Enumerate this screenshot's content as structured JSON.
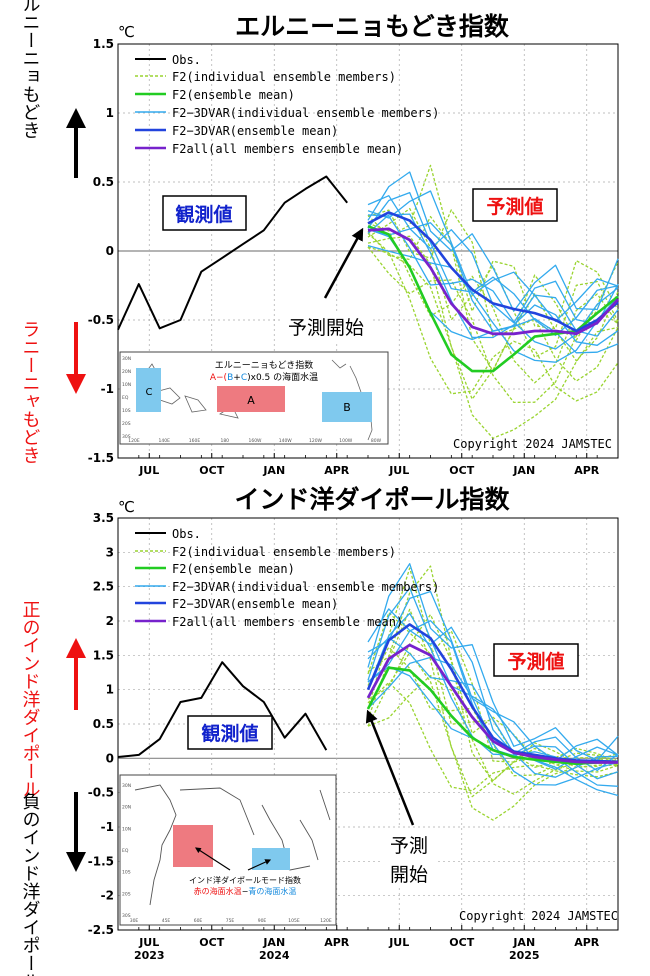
{
  "legend_labels": [
    "Obs.",
    "F2(individual ensemble members)",
    "F2(ensemble mean)",
    "F2−3DVAR(individual ensemble members)",
    "F2−3DVAR(ensemble mean)",
    "F2all(all members ensemble mean)"
  ],
  "colors": {
    "obs": "#000000",
    "f2_member": "#9ad430",
    "f2_mean": "#22cc22",
    "dvar_member": "#33aaee",
    "dvar_mean": "#2244dd",
    "all_mean": "#7722cc",
    "red_label": "#ee1111",
    "blue_label": "#1122cc"
  },
  "x_ticks": [
    "JUL",
    "OCT",
    "JAN",
    "APR",
    "JUL",
    "OCT",
    "JAN",
    "APR"
  ],
  "year_labels": [
    "2023",
    "2024",
    "2025"
  ],
  "panel1": {
    "title": "エルニーニョもどき指数",
    "unit": "℃",
    "obs_box": "観測値",
    "fcst_box": "予測値",
    "start_label": "予測開始",
    "copyright": "Copyright 2024 JAMSTEC",
    "side_pos": "エルニーニョもどき",
    "side_neg": "ラニーニャもどき",
    "inset_title": "エルニーニョもどき指数",
    "inset_formula": {
      "a": "A−(",
      "b": "B",
      "plus": "+",
      "c": "C",
      "rest": ")x0.5 の海面水温"
    },
    "inset_boxes": {
      "a": "A",
      "b": "B",
      "c": "C"
    },
    "inset_lat_labels": [
      "30N",
      "20N",
      "10N",
      "EQ",
      "10S",
      "20S",
      "30S"
    ],
    "inset_lon_labels": [
      "120E",
      "140E",
      "160E",
      "180",
      "160W",
      "140W",
      "120W",
      "100W",
      "80W"
    ]
  },
  "panel2": {
    "title": "インド洋ダイポール指数",
    "unit": "℃",
    "obs_box": "観測値",
    "fcst_box": "予測値",
    "start_label_1": "予測",
    "start_label_2": "開始",
    "copyright": "Copyright 2024 JAMSTEC",
    "side_pos": "正のインド洋ダイポール",
    "side_neg": "負のインド洋ダイポール",
    "inset_title": "インド洋ダイポールモード指数",
    "inset_sub_red": "赤の海面水温",
    "inset_sub_dash": "−",
    "inset_sub_blue": "青の海面水温",
    "inset_lat_labels": [
      "30N",
      "20N",
      "10N",
      "EQ",
      "10S",
      "20S",
      "30S"
    ],
    "inset_lon_labels": [
      "30E",
      "45E",
      "60E",
      "75E",
      "90E",
      "105E",
      "120E"
    ]
  },
  "chart_data": [
    {
      "type": "line",
      "title": "エルニーニョもどき指数",
      "ylabel": "℃",
      "ylim": [
        -1.5,
        1.5
      ],
      "yticks": [
        -1.5,
        -1,
        -0.5,
        0,
        0.5,
        1,
        1.5
      ],
      "xlim": [
        0,
        24
      ],
      "grid": true,
      "legend_position": "top-left",
      "forecast_start_x": 12,
      "series": [
        {
          "name": "Obs.",
          "x": [
            0,
            1,
            2,
            3,
            4,
            5,
            6,
            7,
            8,
            9,
            10,
            11
          ],
          "y": [
            -0.57,
            -0.24,
            -0.56,
            -0.5,
            -0.15,
            -0.05,
            0.05,
            0.15,
            0.35,
            0.45,
            0.54,
            0.35
          ]
        },
        {
          "name": "F2(ensemble mean)",
          "x": [
            12,
            13,
            14,
            15,
            16,
            17,
            18,
            19,
            20,
            21,
            22,
            23,
            24
          ],
          "y": [
            0.18,
            0.12,
            -0.12,
            -0.45,
            -0.75,
            -0.87,
            -0.87,
            -0.75,
            -0.62,
            -0.6,
            -0.58,
            -0.45,
            -0.33
          ]
        },
        {
          "name": "F2−3DVAR(ensemble mean)",
          "x": [
            12,
            13,
            14,
            15,
            16,
            17,
            18,
            19,
            20,
            21,
            22,
            23,
            24
          ],
          "y": [
            0.2,
            0.28,
            0.22,
            0.08,
            -0.12,
            -0.28,
            -0.38,
            -0.42,
            -0.45,
            -0.5,
            -0.58,
            -0.5,
            -0.37
          ]
        },
        {
          "name": "F2all(all members ensemble mean)",
          "x": [
            12,
            13,
            14,
            15,
            16,
            17,
            18,
            19,
            20,
            21,
            22,
            23,
            24
          ],
          "y": [
            0.15,
            0.16,
            0.08,
            -0.12,
            -0.38,
            -0.55,
            -0.6,
            -0.6,
            -0.58,
            -0.58,
            -0.6,
            -0.52,
            -0.35
          ]
        }
      ],
      "member_spread": {
        "f2": {
          "x": [
            12,
            13,
            14,
            15,
            16,
            17,
            18,
            19,
            20,
            21,
            22,
            23,
            24
          ],
          "y_min": [
            -0.05,
            -0.25,
            -0.55,
            -0.9,
            -1.2,
            -1.45,
            -1.4,
            -1.3,
            -1.3,
            -1.35,
            -1.25,
            -1.1,
            -0.95
          ],
          "y_max": [
            0.3,
            0.38,
            0.45,
            0.62,
            0.5,
            0.35,
            0.1,
            -0.05,
            -0.05,
            -0.15,
            -0.05,
            0.05,
            0.0
          ]
        },
        "dvar": {
          "x": [
            12,
            13,
            14,
            15,
            16,
            17,
            18,
            19,
            20,
            21,
            22,
            23,
            24
          ],
          "y_min": [
            0.0,
            -0.05,
            -0.2,
            -0.45,
            -0.6,
            -0.75,
            -0.8,
            -0.85,
            -0.85,
            -0.9,
            -0.92,
            -0.8,
            -0.68
          ],
          "y_max": [
            0.4,
            0.55,
            0.6,
            0.5,
            0.35,
            0.15,
            0.0,
            -0.1,
            -0.05,
            -0.1,
            -0.2,
            -0.15,
            0.0
          ]
        }
      }
    },
    {
      "type": "line",
      "title": "インド洋ダイポール指数",
      "ylabel": "℃",
      "ylim": [
        -2.5,
        3.5
      ],
      "yticks": [
        -2.5,
        -2,
        -1.5,
        -1,
        -0.5,
        0,
        0.5,
        1,
        1.5,
        2,
        2.5,
        3,
        3.5
      ],
      "xlim": [
        0,
        24
      ],
      "xticks_labels": [
        "JUL 2023",
        "OCT",
        "JAN 2024",
        "APR",
        "JUL",
        "OCT",
        "JAN 2025",
        "APR"
      ],
      "grid": true,
      "legend_position": "top-left",
      "forecast_start_x": 12,
      "series": [
        {
          "name": "Obs.",
          "x": [
            0,
            1,
            2,
            3,
            4,
            5,
            6,
            7,
            8,
            9,
            10,
            11
          ],
          "y": [
            0.02,
            0.05,
            0.28,
            0.82,
            0.88,
            1.4,
            1.05,
            0.82,
            0.3,
            0.65,
            0.12,
            null
          ]
        },
        {
          "name": "F2(ensemble mean)",
          "x": [
            12,
            13,
            14,
            15,
            16,
            17,
            18,
            19,
            20,
            21,
            22,
            23,
            24
          ],
          "y": [
            0.72,
            1.32,
            1.28,
            1.0,
            0.62,
            0.3,
            0.12,
            0.02,
            -0.02,
            -0.05,
            -0.08,
            -0.06,
            -0.05
          ]
        },
        {
          "name": "F2−3DVAR(ensemble mean)",
          "x": [
            12,
            13,
            14,
            15,
            16,
            17,
            18,
            19,
            20,
            21,
            22,
            23,
            24
          ],
          "y": [
            1.0,
            1.72,
            1.95,
            1.75,
            1.3,
            0.75,
            0.3,
            0.1,
            0.05,
            0.0,
            -0.03,
            -0.04,
            -0.05
          ]
        },
        {
          "name": "F2all(all members ensemble mean)",
          "x": [
            12,
            13,
            14,
            15,
            16,
            17,
            18,
            19,
            20,
            21,
            22,
            23,
            24
          ],
          "y": [
            0.88,
            1.45,
            1.65,
            1.5,
            1.05,
            0.6,
            0.25,
            0.08,
            0.02,
            -0.02,
            -0.05,
            -0.06,
            -0.06
          ]
        }
      ],
      "member_spread": {
        "f2": {
          "x": [
            12,
            13,
            14,
            15,
            16,
            17,
            18,
            19,
            20,
            21,
            22,
            23,
            24
          ],
          "y_min": [
            0.2,
            0.3,
            0.2,
            -0.1,
            -0.7,
            -1.1,
            -0.95,
            -0.7,
            -0.45,
            -0.35,
            -0.3,
            -0.3,
            -0.25
          ],
          "y_max": [
            1.4,
            2.4,
            3.2,
            2.8,
            2.2,
            1.5,
            0.8,
            0.4,
            0.3,
            0.2,
            0.15,
            0.15,
            0.1
          ]
        },
        "dvar": {
          "x": [
            12,
            13,
            14,
            15,
            16,
            17,
            18,
            19,
            20,
            21,
            22,
            23,
            24
          ],
          "y_min": [
            0.6,
            0.9,
            1.0,
            0.8,
            0.4,
            0.1,
            -0.2,
            -0.35,
            -0.45,
            -0.5,
            -0.55,
            -0.55,
            -0.55
          ],
          "y_max": [
            1.9,
            2.6,
            2.9,
            2.55,
            2.3,
            1.7,
            1.0,
            0.6,
            0.5,
            0.45,
            0.4,
            0.35,
            0.4
          ]
        }
      }
    }
  ]
}
